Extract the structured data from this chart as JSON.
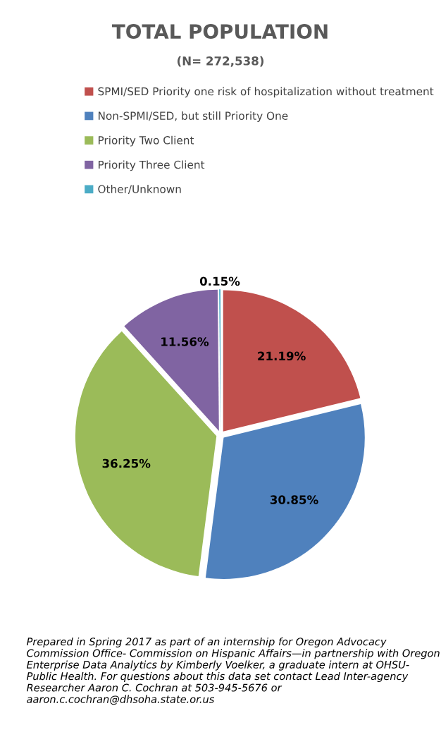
{
  "chart_data": {
    "type": "pie",
    "title": "TOTAL POPULATION",
    "subtitle": "(N= 272,538)",
    "categories": [
      "SPMI/SED Priority one risk of hospitalization without treatment",
      "Non-SPMI/SED, but still Priority One",
      "Priority Two Client",
      "Priority Three Client",
      "Other/Unknown"
    ],
    "values": [
      21.19,
      30.85,
      36.25,
      11.56,
      0.15
    ],
    "colors": [
      "#c0504d",
      "#4f81bd",
      "#9bbb59",
      "#8064a2",
      "#4bacc6"
    ],
    "value_labels": [
      "21.19%",
      "30.85%",
      "36.25%",
      "11.56%",
      "0.15%"
    ],
    "legend": "top",
    "annotations": [
      "Prepared in Spring 2017 as part of an internship for Oregon Advocacy Commission Office- Commission on Hispanic Affairs—in partnership with Oregon Enterprise Data Analytics by Kimberly Voelker, a graduate intern at OHSU- Public Health. For questions about this data set contact Lead Inter-agency Researcher Aaron C. Cochran at 503-945-5676 or aaron.c.cochran@dhsoha.state.or.us"
    ]
  }
}
